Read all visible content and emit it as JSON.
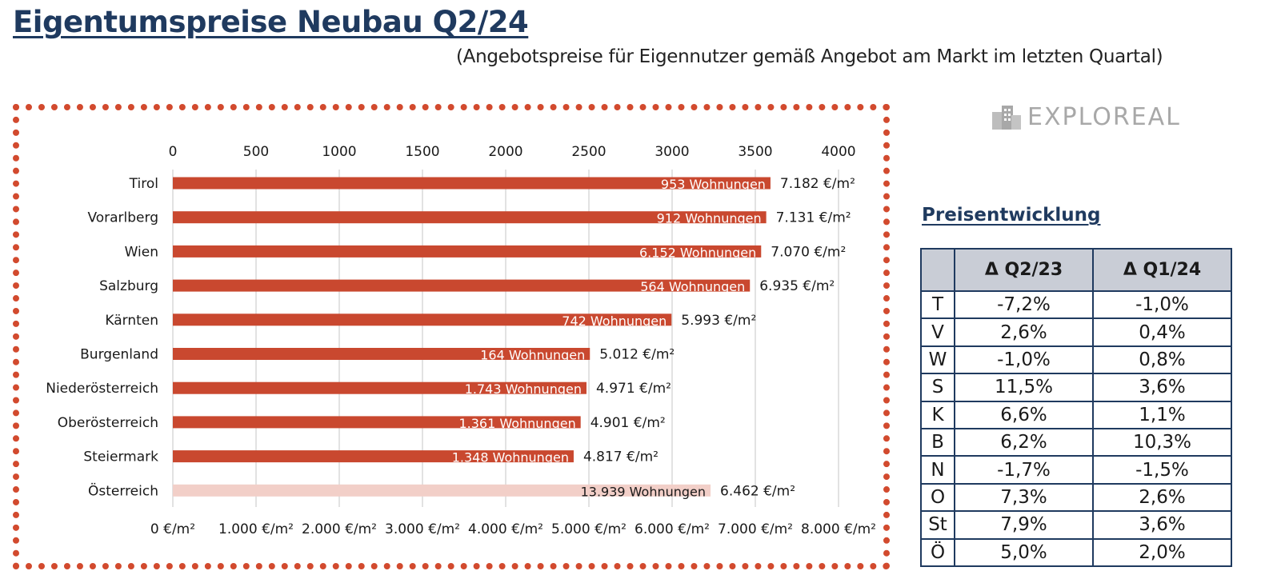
{
  "title": "Eigentumspreise Neubau Q2/24",
  "subtitle": "(Angebotspreise für Eigennutzer gemäß Angebot am Markt im letzten Quartal)",
  "logo": {
    "text": "EXPLOREAL",
    "icon": "building-icon"
  },
  "colors": {
    "bar": "#c9482f",
    "bar_total": "#f2cfc8",
    "heading": "#1f3a5f",
    "grid": "#d9d9d9"
  },
  "chart_data": {
    "type": "bar",
    "orientation": "horizontal",
    "categories": [
      "Tirol",
      "Vorarlberg",
      "Wien",
      "Salzburg",
      "Kärnten",
      "Burgenland",
      "Niederösterreich",
      "Oberösterreich",
      "Steiermark",
      "Österreich"
    ],
    "series": [
      {
        "values": [
          7182,
          7131,
          7070,
          6935,
          5993,
          5012,
          4971,
          4901,
          4817,
          6462
        ],
        "value_labels": [
          "7.182 €/m²",
          "7.131 €/m²",
          "7.070 €/m²",
          "6.935 €/m²",
          "5.993 €/m²",
          "5.012 €/m²",
          "4.971 €/m²",
          "4.901 €/m²",
          "4.817 €/m²",
          "6.462 €/m²"
        ],
        "bar_labels": [
          "953 Wohnungen",
          "912 Wohnungen",
          "6.152 Wohnungen",
          "564 Wohnungen",
          "742 Wohnungen",
          "164 Wohnungen",
          "1.743 Wohnungen",
          "1.361 Wohnungen",
          "1.348 Wohnungen",
          "13.939 Wohnungen"
        ]
      }
    ],
    "highlight_category": "Österreich",
    "primary_axis": {
      "range": [
        0,
        8000
      ],
      "tick_labels": [
        "0 €/m²",
        "1.000 €/m²",
        "2.000 €/m²",
        "3.000 €/m²",
        "4.000 €/m²",
        "5.000 €/m²",
        "6.000 €/m²",
        "7.000 €/m²",
        "8.000 €/m²"
      ],
      "position": "bottom"
    },
    "secondary_axis": {
      "range": [
        0,
        4000
      ],
      "tick_labels": [
        "0",
        "500",
        "1000",
        "1500",
        "2000",
        "2500",
        "3000",
        "3500",
        "4000"
      ],
      "position": "top"
    },
    "grid": true,
    "legend": "none"
  },
  "delta_table": {
    "title": "Preisentwicklung",
    "headers": [
      "",
      "Δ Q2/23",
      "Δ Q1/24"
    ],
    "rows": [
      [
        "T",
        "-7,2%",
        "-1,0%"
      ],
      [
        "V",
        "2,6%",
        "0,4%"
      ],
      [
        "W",
        "-1,0%",
        "0,8%"
      ],
      [
        "S",
        "11,5%",
        "3,6%"
      ],
      [
        "K",
        "6,6%",
        "1,1%"
      ],
      [
        "B",
        "6,2%",
        "10,3%"
      ],
      [
        "N",
        "-1,7%",
        "-1,5%"
      ],
      [
        "O",
        "7,3%",
        "2,6%"
      ],
      [
        "St",
        "7,9%",
        "3,6%"
      ],
      [
        "Ö",
        "5,0%",
        "2,0%"
      ]
    ]
  }
}
